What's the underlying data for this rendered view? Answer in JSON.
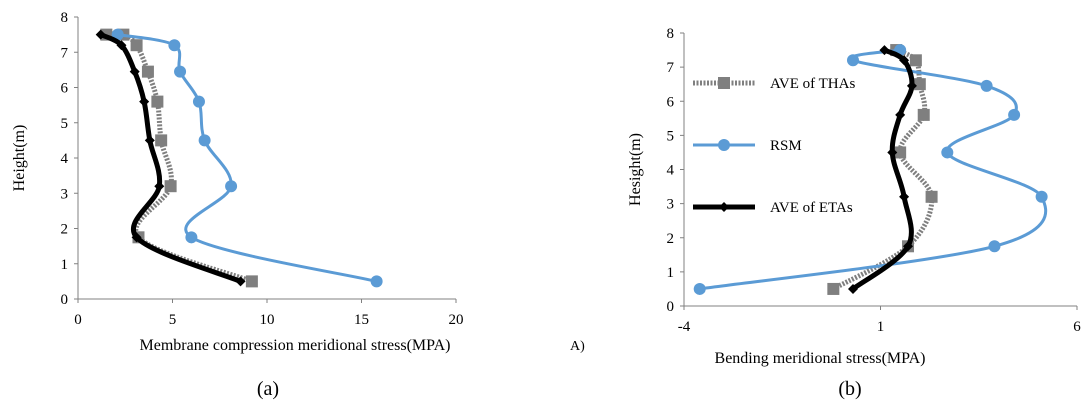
{
  "chart_data": [
    {
      "type": "line",
      "caption": "(a)",
      "xlabel": "Membrane compression meridional stress(MPA)",
      "ylabel": "Height(m)",
      "xlim": [
        0,
        20
      ],
      "ylim": [
        0,
        8
      ],
      "xticks": [
        "0",
        "5",
        "10",
        "15",
        "20"
      ],
      "yticks": [
        "0",
        "1",
        "2",
        "3",
        "4",
        "5",
        "6",
        "7",
        "8"
      ],
      "grid": false,
      "legend": "none",
      "series": [
        {
          "name": "AVE of THAs",
          "color": "#7f7f7f",
          "marker": "square",
          "x": [
            9.2,
            3.2,
            4.9,
            4.4,
            4.2,
            3.7,
            3.1,
            2.4,
            1.5
          ],
          "y": [
            0.5,
            1.75,
            3.2,
            4.5,
            5.6,
            6.45,
            7.2,
            7.5,
            7.5
          ]
        },
        {
          "name": "RSM",
          "color": "#5b9bd5",
          "marker": "circle",
          "x": [
            15.8,
            6.0,
            8.1,
            6.7,
            6.4,
            5.4,
            5.1,
            2.1
          ],
          "y": [
            0.5,
            1.75,
            3.2,
            4.5,
            5.6,
            6.45,
            7.2,
            7.5
          ]
        },
        {
          "name": "AVE of ETAs",
          "color": "#000000",
          "marker": "diamond",
          "x": [
            8.6,
            3.1,
            4.3,
            3.8,
            3.5,
            3.0,
            2.3,
            1.2
          ],
          "y": [
            0.5,
            1.75,
            3.2,
            4.5,
            5.6,
            6.45,
            7.2,
            7.5
          ]
        }
      ]
    },
    {
      "type": "line",
      "caption": "(b)",
      "xlabel": "Bending meridional stress(MPA)",
      "ylabel": "Hesight(m)",
      "xlim": [
        -4,
        6
      ],
      "ylim": [
        0,
        8
      ],
      "xticks": [
        "-4",
        "1",
        "6"
      ],
      "yticks": [
        "0",
        "1",
        "2",
        "3",
        "4",
        "5",
        "6",
        "7",
        "8"
      ],
      "grid": false,
      "legend": "left",
      "series": [
        {
          "name": "AVE of THAs",
          "color": "#7f7f7f",
          "marker": "square",
          "x": [
            -0.2,
            1.7,
            2.3,
            1.5,
            2.1,
            2.0,
            1.9,
            1.4
          ],
          "y": [
            0.5,
            1.75,
            3.2,
            4.5,
            5.6,
            6.5,
            7.2,
            7.5
          ]
        },
        {
          "name": "RSM",
          "color": "#5b9bd5",
          "marker": "circle",
          "x": [
            -3.6,
            3.9,
            5.1,
            2.7,
            4.4,
            3.7,
            0.3,
            1.5
          ],
          "y": [
            0.5,
            1.75,
            3.2,
            4.5,
            5.6,
            6.45,
            7.2,
            7.5
          ]
        },
        {
          "name": "AVE of ETAs",
          "color": "#000000",
          "marker": "diamond",
          "x": [
            0.3,
            1.7,
            1.6,
            1.3,
            1.5,
            1.8,
            1.6,
            1.1
          ],
          "y": [
            0.5,
            1.75,
            3.2,
            4.5,
            5.6,
            6.45,
            7.2,
            7.5
          ]
        }
      ]
    }
  ],
  "side_label": "A)"
}
